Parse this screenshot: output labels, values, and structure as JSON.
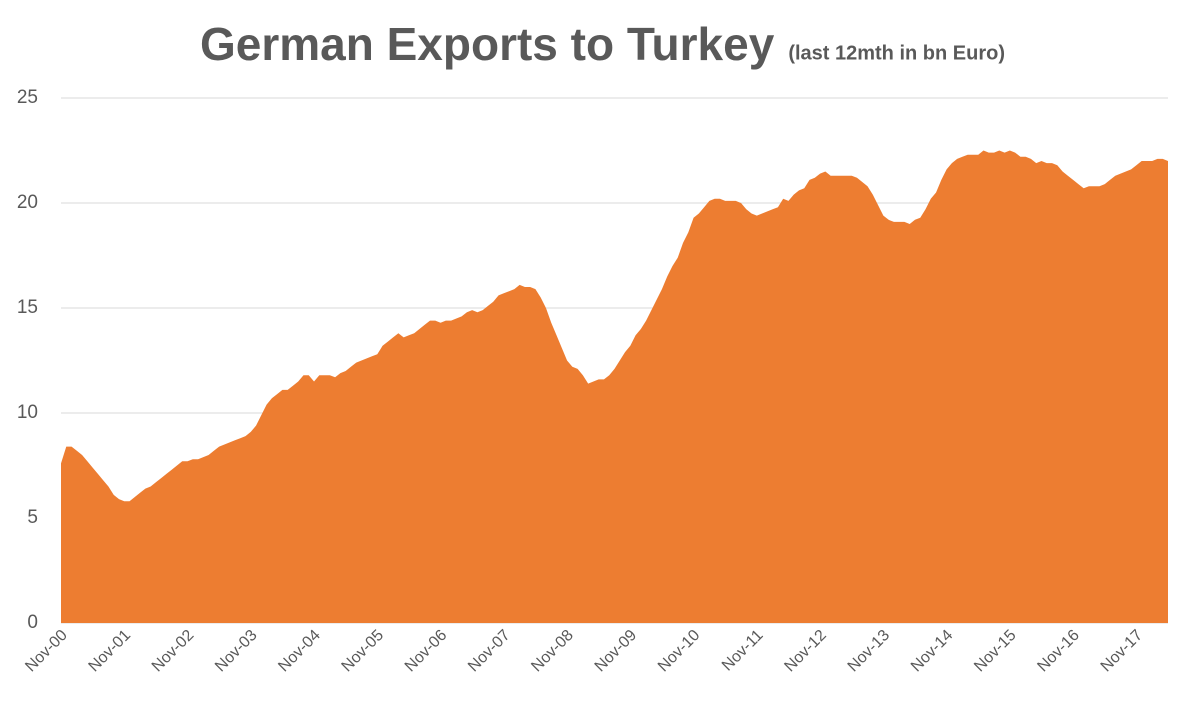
{
  "chart_data": {
    "type": "area",
    "title": "German Exports to Turkey",
    "subtitle": "(last 12mth in bn Euro)",
    "categories": [
      "Nov-00",
      null,
      null,
      null,
      null,
      null,
      null,
      null,
      null,
      null,
      null,
      null,
      "Nov-01",
      null,
      null,
      null,
      null,
      null,
      null,
      null,
      null,
      null,
      null,
      null,
      "Nov-02",
      null,
      null,
      null,
      null,
      null,
      null,
      null,
      null,
      null,
      null,
      null,
      "Nov-03",
      null,
      null,
      null,
      null,
      null,
      null,
      null,
      null,
      null,
      null,
      null,
      "Nov-04",
      null,
      null,
      null,
      null,
      null,
      null,
      null,
      null,
      null,
      null,
      null,
      "Nov-05",
      null,
      null,
      null,
      null,
      null,
      null,
      null,
      null,
      null,
      null,
      null,
      "Nov-06",
      null,
      null,
      null,
      null,
      null,
      null,
      null,
      null,
      null,
      null,
      null,
      "Nov-07",
      null,
      null,
      null,
      null,
      null,
      null,
      null,
      null,
      null,
      null,
      null,
      "Nov-08",
      null,
      null,
      null,
      null,
      null,
      null,
      null,
      null,
      null,
      null,
      null,
      "Nov-09",
      null,
      null,
      null,
      null,
      null,
      null,
      null,
      null,
      null,
      null,
      null,
      "Nov-10",
      null,
      null,
      null,
      null,
      null,
      null,
      null,
      null,
      null,
      null,
      null,
      "Nov-11",
      null,
      null,
      null,
      null,
      null,
      null,
      null,
      null,
      null,
      null,
      null,
      "Nov-12",
      null,
      null,
      null,
      null,
      null,
      null,
      null,
      null,
      null,
      null,
      null,
      "Nov-13",
      null,
      null,
      null,
      null,
      null,
      null,
      null,
      null,
      null,
      null,
      null,
      "Nov-14",
      null,
      null,
      null,
      null,
      null,
      null,
      null,
      null,
      null,
      null,
      null,
      "Nov-15",
      null,
      null,
      null,
      null,
      null,
      null,
      null,
      null,
      null,
      null,
      null,
      "Nov-16",
      null,
      null,
      null,
      null,
      null,
      null,
      null,
      null,
      null,
      null,
      null,
      "Nov-17",
      null,
      null,
      null,
      null,
      null,
      null
    ],
    "values": [
      7.6,
      8.4,
      8.4,
      8.2,
      8.0,
      7.7,
      7.4,
      7.1,
      6.8,
      6.5,
      6.1,
      5.9,
      5.8,
      5.8,
      6.0,
      6.2,
      6.4,
      6.5,
      6.7,
      6.9,
      7.1,
      7.3,
      7.5,
      7.7,
      7.7,
      7.8,
      7.8,
      7.9,
      8.0,
      8.2,
      8.4,
      8.5,
      8.6,
      8.7,
      8.8,
      8.9,
      9.1,
      9.4,
      9.9,
      10.4,
      10.7,
      10.9,
      11.1,
      11.1,
      11.3,
      11.5,
      11.8,
      11.8,
      11.5,
      11.8,
      11.8,
      11.8,
      11.7,
      11.9,
      12.0,
      12.2,
      12.4,
      12.5,
      12.6,
      12.7,
      12.8,
      13.2,
      13.4,
      13.6,
      13.8,
      13.6,
      13.7,
      13.8,
      14.0,
      14.2,
      14.4,
      14.4,
      14.3,
      14.4,
      14.4,
      14.5,
      14.6,
      14.8,
      14.9,
      14.8,
      14.9,
      15.1,
      15.3,
      15.6,
      15.7,
      15.8,
      15.9,
      16.1,
      16.0,
      16.0,
      15.9,
      15.5,
      15.0,
      14.3,
      13.7,
      13.1,
      12.5,
      12.2,
      12.1,
      11.8,
      11.4,
      11.5,
      11.6,
      11.6,
      11.8,
      12.1,
      12.5,
      12.9,
      13.2,
      13.7,
      14.0,
      14.4,
      14.9,
      15.4,
      15.9,
      16.5,
      17.0,
      17.4,
      18.1,
      18.6,
      19.3,
      19.5,
      19.8,
      20.1,
      20.2,
      20.2,
      20.1,
      20.1,
      20.1,
      20.0,
      19.7,
      19.5,
      19.4,
      19.5,
      19.6,
      19.7,
      19.8,
      20.2,
      20.1,
      20.4,
      20.6,
      20.7,
      21.1,
      21.2,
      21.4,
      21.5,
      21.3,
      21.3,
      21.3,
      21.3,
      21.3,
      21.2,
      21.0,
      20.8,
      20.4,
      19.9,
      19.4,
      19.2,
      19.1,
      19.1,
      19.1,
      19.0,
      19.2,
      19.3,
      19.7,
      20.2,
      20.5,
      21.1,
      21.6,
      21.9,
      22.1,
      22.2,
      22.3,
      22.3,
      22.3,
      22.5,
      22.4,
      22.4,
      22.5,
      22.4,
      22.5,
      22.4,
      22.2,
      22.2,
      22.1,
      21.9,
      22.0,
      21.9,
      21.9,
      21.8,
      21.5,
      21.3,
      21.1,
      20.9,
      20.7,
      20.8,
      20.8,
      20.8,
      20.9,
      21.1,
      21.3,
      21.4,
      21.5,
      21.6,
      21.8,
      22.0,
      22.0,
      22.0,
      22.1,
      22.1,
      22.0
    ],
    "color": "#ed7d31",
    "ylim": [
      0,
      25
    ],
    "yticks": [
      0,
      5,
      10,
      15,
      20,
      25
    ],
    "grid": true
  }
}
